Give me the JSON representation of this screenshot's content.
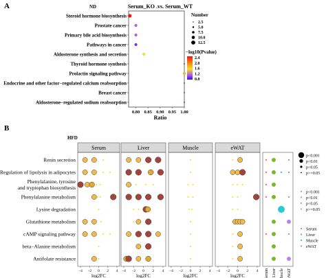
{
  "panels": {
    "a": {
      "letter": "A",
      "tag": "ND"
    },
    "b": {
      "letter": "B",
      "tag": "HFD"
    }
  },
  "chart_data": [
    {
      "id": "A",
      "type": "scatter",
      "title": "Serum_KO .vs. Serum_WT",
      "xlabel": "Ratio",
      "ylabel": "",
      "xlim": [
        0.77,
        1.0
      ],
      "xticks": [
        "0.80",
        "0.85",
        "0.90",
        "0.95",
        "1.00"
      ],
      "categories": [
        "Steroid hormone biosynthesis",
        "Prostate cancer",
        "Primary bile acid biosynthesis",
        "Pathways in cancer",
        "Aldosterone synthesis and secretion",
        "Thyroid hormone synthesis",
        "Prolactin signaling pathway",
        "Endocrine and other factor−regulated calcium reabsorption",
        "Breast cancer",
        "Aldosterone−regulated sodium reabsorption"
      ],
      "points": [
        {
          "pathway": "Steroid hormone biosynthesis",
          "ratio": 0.775,
          "number": 5,
          "neglog10p": 2.4
        },
        {
          "pathway": "Prostate cancer",
          "ratio": 0.8,
          "number": 2.5,
          "neglog10p": 1.2
        },
        {
          "pathway": "Primary bile acid biosynthesis",
          "ratio": 0.8,
          "number": 2.5,
          "neglog10p": 1.2
        },
        {
          "pathway": "Pathways in cancer",
          "ratio": 0.8,
          "number": 2.5,
          "neglog10p": 1.0
        },
        {
          "pathway": "Aldosterone synthesis and secretion",
          "ratio": 0.833,
          "number": 2.5,
          "neglog10p": 1.6
        },
        {
          "pathway": "Thyroid hormone synthesis",
          "ratio": 1.0,
          "number": 1,
          "neglog10p": 0.8
        },
        {
          "pathway": "Prolactin signaling pathway",
          "ratio": 1.0,
          "number": 2.5,
          "neglog10p": 1.8
        },
        {
          "pathway": "Endocrine and other factor−regulated calcium reabsorption",
          "ratio": 1.0,
          "number": 1,
          "neglog10p": 0.8
        },
        {
          "pathway": "Breast cancer",
          "ratio": 1.0,
          "number": 1,
          "neglog10p": 0.8
        },
        {
          "pathway": "Aldosterone−regulated sodium reabsorption",
          "ratio": 1.0,
          "number": 1,
          "neglog10p": 0.8
        }
      ],
      "legend": {
        "size_title": "Number",
        "size_values": [
          "2.5",
          "5.0",
          "7.5",
          "10.0",
          "12.5"
        ],
        "color_title": "−log10(Pvalue)",
        "color_ticks": [
          "2.4",
          "2.0",
          "1.6",
          "1.2",
          "0.8"
        ],
        "color_low": "#3a0ef0",
        "color_high": "#ee1a12"
      }
    },
    {
      "id": "B",
      "type": "scatter",
      "xlabel": "log2FC",
      "facets": [
        "Serum",
        "Liver",
        "Muscle",
        "eWAT"
      ],
      "xticks": [
        "−4",
        "−2",
        "0",
        "2",
        "4"
      ],
      "categories": [
        "Renin secretion",
        "Regulation of lipolysis in adipocytes",
        "Phenylalanine, tyrosine\nand tryptophan biosynthesis",
        "Phenylalanine metabolism",
        "Lysine degradation",
        "Glutathione metabolism",
        "cAMP signaling pathway",
        "beta−Alanine metabolism",
        "Antifolate resistance"
      ],
      "points": [
        {
          "facet": "Serum",
          "row": 0,
          "x": -3.0,
          "p": "lt0.05"
        },
        {
          "facet": "Serum",
          "row": 0,
          "x": -1.0,
          "p": "lt0.05"
        },
        {
          "facet": "Serum",
          "row": 0,
          "x": 1.0,
          "p": "gt0.05"
        },
        {
          "facet": "Serum",
          "row": 1,
          "x": -3.0,
          "p": "lt0.05"
        },
        {
          "facet": "Serum",
          "row": 1,
          "x": -1.0,
          "p": "lt0.05"
        },
        {
          "facet": "Serum",
          "row": 1,
          "x": 1.0,
          "p": "gt0.05"
        },
        {
          "facet": "Serum",
          "row": 1,
          "x": 2.5,
          "p": "gt0.05"
        },
        {
          "facet": "Serum",
          "row": 2,
          "x": -4.0,
          "p": "lt0.001"
        },
        {
          "facet": "Serum",
          "row": 2,
          "x": -2.5,
          "p": "lt0.05"
        },
        {
          "facet": "Serum",
          "row": 2,
          "x": -1.5,
          "p": "lt0.01"
        },
        {
          "facet": "Serum",
          "row": 2,
          "x": -0.5,
          "p": "gt0.05"
        },
        {
          "facet": "Serum",
          "row": 2,
          "x": 0.3,
          "p": "gt0.05"
        },
        {
          "facet": "Serum",
          "row": 3,
          "x": -1.0,
          "p": "lt0.05"
        },
        {
          "facet": "Serum",
          "row": 3,
          "x": -0.3,
          "p": "gt0.05"
        },
        {
          "facet": "Serum",
          "row": 3,
          "x": 0.3,
          "p": "gt0.05"
        },
        {
          "facet": "Serum",
          "row": 3,
          "x": 3.2,
          "p": "lt0.001"
        },
        {
          "facet": "Serum",
          "row": 4,
          "x": 0.0,
          "p": "gt0.05"
        },
        {
          "facet": "Serum",
          "row": 5,
          "x": -3.0,
          "p": "lt0.05"
        },
        {
          "facet": "Serum",
          "row": 5,
          "x": -1.0,
          "p": "lt0.05"
        },
        {
          "facet": "Serum",
          "row": 5,
          "x": 0.5,
          "p": "gt0.05"
        },
        {
          "facet": "Serum",
          "row": 6,
          "x": -3.0,
          "p": "lt0.05"
        },
        {
          "facet": "Serum",
          "row": 6,
          "x": -1.0,
          "p": "lt0.05"
        },
        {
          "facet": "Serum",
          "row": 6,
          "x": 1.0,
          "p": "gt0.05"
        },
        {
          "facet": "Serum",
          "row": 6,
          "x": 2.5,
          "p": "gt0.05"
        },
        {
          "facet": "Serum",
          "row": 7,
          "x": 0.0,
          "p": "gt0.05"
        },
        {
          "facet": "Serum",
          "row": 8,
          "x": -1.0,
          "p": "lt0.05"
        },
        {
          "facet": "Serum",
          "row": 8,
          "x": 0.0,
          "p": "gt0.05"
        },
        {
          "facet": "Liver",
          "row": 0,
          "x": -3.0,
          "p": "lt0.05"
        },
        {
          "facet": "Liver",
          "row": 0,
          "x": -1.0,
          "p": "lt0.05"
        },
        {
          "facet": "Liver",
          "row": 0,
          "x": 1.0,
          "p": "lt0.001"
        },
        {
          "facet": "Liver",
          "row": 0,
          "x": 3.0,
          "p": "lt0.001"
        },
        {
          "facet": "Liver",
          "row": 1,
          "x": -3.0,
          "p": "lt0.001"
        },
        {
          "facet": "Liver",
          "row": 1,
          "x": -1.0,
          "p": "lt0.001"
        },
        {
          "facet": "Liver",
          "row": 1,
          "x": 1.5,
          "p": "lt0.01"
        },
        {
          "facet": "Liver",
          "row": 1,
          "x": 3.5,
          "p": "lt0.001"
        },
        {
          "facet": "Liver",
          "row": 2,
          "x": -3.0,
          "p": "lt0.05"
        },
        {
          "facet": "Liver",
          "row": 2,
          "x": -1.5,
          "p": "gt0.05"
        },
        {
          "facet": "Liver",
          "row": 2,
          "x": 0.5,
          "p": "gt0.05"
        },
        {
          "facet": "Liver",
          "row": 2,
          "x": 2.0,
          "p": "gt0.05"
        },
        {
          "facet": "Liver",
          "row": 3,
          "x": -3.0,
          "p": "lt0.001"
        },
        {
          "facet": "Liver",
          "row": 3,
          "x": -1.0,
          "p": "lt0.001"
        },
        {
          "facet": "Liver",
          "row": 3,
          "x": 1.0,
          "p": "lt0.001"
        },
        {
          "facet": "Liver",
          "row": 3,
          "x": 3.5,
          "p": "lt0.001"
        },
        {
          "facet": "Liver",
          "row": 4,
          "x": -2.0,
          "p": "gt0.05"
        },
        {
          "facet": "Liver",
          "row": 4,
          "x": -1.0,
          "p": "gt0.05"
        },
        {
          "facet": "Liver",
          "row": 4,
          "x": 0.5,
          "p": "lt0.001"
        },
        {
          "facet": "Liver",
          "row": 4,
          "x": 0.9,
          "p": "lt0.01"
        },
        {
          "facet": "Liver",
          "row": 5,
          "x": -2.0,
          "p": "gt0.05"
        },
        {
          "facet": "Liver",
          "row": 5,
          "x": -1.0,
          "p": "lt0.05"
        },
        {
          "facet": "Liver",
          "row": 5,
          "x": 1.0,
          "p": "lt0.001"
        },
        {
          "facet": "Liver",
          "row": 6,
          "x": -3.0,
          "p": "lt0.05"
        },
        {
          "facet": "Liver",
          "row": 6,
          "x": -1.0,
          "p": "lt0.001"
        },
        {
          "facet": "Liver",
          "row": 6,
          "x": 1.0,
          "p": "lt0.001"
        },
        {
          "facet": "Liver",
          "row": 6,
          "x": 3.0,
          "p": "lt0.05"
        },
        {
          "facet": "Liver",
          "row": 7,
          "x": -1.0,
          "p": "lt0.05"
        },
        {
          "facet": "Liver",
          "row": 7,
          "x": 1.0,
          "p": "lt0.001"
        },
        {
          "facet": "Liver",
          "row": 8,
          "x": -3.5,
          "p": "lt0.01"
        },
        {
          "facet": "Liver",
          "row": 8,
          "x": -3.0,
          "p": "lt0.001"
        },
        {
          "facet": "Liver",
          "row": 8,
          "x": -1.0,
          "p": "lt0.05"
        },
        {
          "facet": "Liver",
          "row": 8,
          "x": 1.0,
          "p": "lt0.01"
        },
        {
          "facet": "Muscle",
          "row": 0,
          "x": 0.0,
          "p": "gt0.05"
        },
        {
          "facet": "Muscle",
          "row": 1,
          "x": 0.0,
          "p": "gt0.05"
        },
        {
          "facet": "Muscle",
          "row": 2,
          "x": -0.5,
          "p": "gt0.05"
        },
        {
          "facet": "Muscle",
          "row": 2,
          "x": 0.5,
          "p": "gt0.05"
        },
        {
          "facet": "Muscle",
          "row": 3,
          "x": -0.5,
          "p": "gt0.05"
        },
        {
          "facet": "Muscle",
          "row": 3,
          "x": 0.5,
          "p": "gt0.05"
        },
        {
          "facet": "Muscle",
          "row": 4,
          "x": -0.3,
          "p": "gt0.05"
        },
        {
          "facet": "Muscle",
          "row": 4,
          "x": 0.3,
          "p": "gt0.05"
        },
        {
          "facet": "Muscle",
          "row": 5,
          "x": 0.0,
          "p": "gt0.05"
        },
        {
          "facet": "Muscle",
          "row": 6,
          "x": 0.0,
          "p": "gt0.05"
        },
        {
          "facet": "Muscle",
          "row": 7,
          "x": 0.0,
          "p": "gt0.05"
        },
        {
          "facet": "Muscle",
          "row": 8,
          "x": 0.0,
          "p": "gt0.05"
        },
        {
          "facet": "eWAT",
          "row": 0,
          "x": -1.0,
          "p": "gt0.05"
        },
        {
          "facet": "eWAT",
          "row": 0,
          "x": 0.5,
          "p": "lt0.05"
        },
        {
          "facet": "eWAT",
          "row": 1,
          "x": -1.0,
          "p": "lt0.05"
        },
        {
          "facet": "eWAT",
          "row": 1,
          "x": 0.0,
          "p": "lt0.05"
        },
        {
          "facet": "eWAT",
          "row": 1,
          "x": 1.0,
          "p": "lt0.001"
        },
        {
          "facet": "eWAT",
          "row": 2,
          "x": -1.0,
          "p": "gt0.05"
        },
        {
          "facet": "eWAT",
          "row": 2,
          "x": 0.0,
          "p": "gt0.05"
        },
        {
          "facet": "eWAT",
          "row": 2,
          "x": 1.0,
          "p": "gt0.05"
        },
        {
          "facet": "eWAT",
          "row": 3,
          "x": -1.0,
          "p": "gt0.05"
        },
        {
          "facet": "eWAT",
          "row": 3,
          "x": 0.0,
          "p": "gt0.05"
        },
        {
          "facet": "eWAT",
          "row": 3,
          "x": 3.8,
          "p": "lt0.001"
        },
        {
          "facet": "eWAT",
          "row": 4,
          "x": -1.0,
          "p": "gt0.05"
        },
        {
          "facet": "eWAT",
          "row": 4,
          "x": 0.0,
          "p": "gt0.05"
        },
        {
          "facet": "eWAT",
          "row": 5,
          "x": -1.0,
          "p": "gt0.05"
        },
        {
          "facet": "eWAT",
          "row": 5,
          "x": -0.5,
          "p": "lt0.05"
        },
        {
          "facet": "eWAT",
          "row": 5,
          "x": 0.0,
          "p": "lt0.05"
        },
        {
          "facet": "eWAT",
          "row": 5,
          "x": 0.5,
          "p": "lt0.05"
        },
        {
          "facet": "eWAT",
          "row": 5,
          "x": 1.0,
          "p": "lt0.05"
        },
        {
          "facet": "eWAT",
          "row": 6,
          "x": -1.0,
          "p": "gt0.05"
        },
        {
          "facet": "eWAT",
          "row": 6,
          "x": 0.5,
          "p": "lt0.05"
        },
        {
          "facet": "eWAT",
          "row": 7,
          "x": -1.0,
          "p": "gt0.05"
        },
        {
          "facet": "eWAT",
          "row": 7,
          "x": 0.5,
          "p": "lt0.05"
        },
        {
          "facet": "eWAT",
          "row": 8,
          "x": -1.0,
          "p": "gt0.05"
        },
        {
          "facet": "eWAT",
          "row": 8,
          "x": 0.5,
          "p": "lt0.05"
        }
      ],
      "tissue_columns": [
        "Serum",
        "Liver",
        "Muscle",
        "eWAT"
      ],
      "tissue_points": [
        {
          "row": 0,
          "tissue": "Serum",
          "size": "small"
        },
        {
          "row": 0,
          "tissue": "Liver",
          "size": "medium"
        },
        {
          "row": 0,
          "tissue": "eWAT",
          "size": "small"
        },
        {
          "row": 1,
          "tissue": "Serum",
          "size": "small"
        },
        {
          "row": 1,
          "tissue": "Liver",
          "size": "medium"
        },
        {
          "row": 1,
          "tissue": "Muscle",
          "size": "small"
        },
        {
          "row": 1,
          "tissue": "eWAT",
          "size": "small"
        },
        {
          "row": 2,
          "tissue": "Serum",
          "size": "small"
        },
        {
          "row": 2,
          "tissue": "Liver",
          "size": "medium"
        },
        {
          "row": 3,
          "tissue": "Serum",
          "size": "small"
        },
        {
          "row": 3,
          "tissue": "Liver",
          "size": "medium"
        },
        {
          "row": 3,
          "tissue": "eWAT",
          "size": "small"
        },
        {
          "row": 4,
          "tissue": "Muscle",
          "size": "large"
        },
        {
          "row": 5,
          "tissue": "Liver",
          "size": "medium"
        },
        {
          "row": 5,
          "tissue": "eWAT",
          "size": "medium"
        },
        {
          "row": 6,
          "tissue": "Serum",
          "size": "small"
        },
        {
          "row": 6,
          "tissue": "Liver",
          "size": "medium"
        },
        {
          "row": 6,
          "tissue": "eWAT",
          "size": "small"
        },
        {
          "row": 7,
          "tissue": "Liver",
          "size": "medium"
        },
        {
          "row": 8,
          "tissue": "Liver",
          "size": "medium"
        },
        {
          "row": 8,
          "tissue": "eWAT",
          "size": "medium"
        }
      ],
      "legend": {
        "size_labels": [
          "p<0.001",
          "p<0.01",
          "p<0.05",
          "p>=0.05"
        ],
        "color_labels": [
          "p<0.001",
          "p<0.01",
          "p<0.05",
          "p>=0.05"
        ],
        "tissue_labels": [
          "Serum",
          "Liver",
          "Muscle",
          "eWAT"
        ],
        "p_colors": {
          "lt0.001": "#a4423c",
          "lt0.01": "#e4a82c",
          "lt0.05": "#f0bb4a",
          "gt0.05": "#f4e534"
        },
        "p_legend_colors": [
          "#ef73d8",
          "#ef73d8",
          "#ef73d8",
          "#ef73d8"
        ],
        "tissue_colors": {
          "Serum": "#f26e7b",
          "Liver": "#79b82b",
          "Muscle": "#2bc8d7",
          "eWAT": "#c37de8"
        }
      }
    }
  ]
}
